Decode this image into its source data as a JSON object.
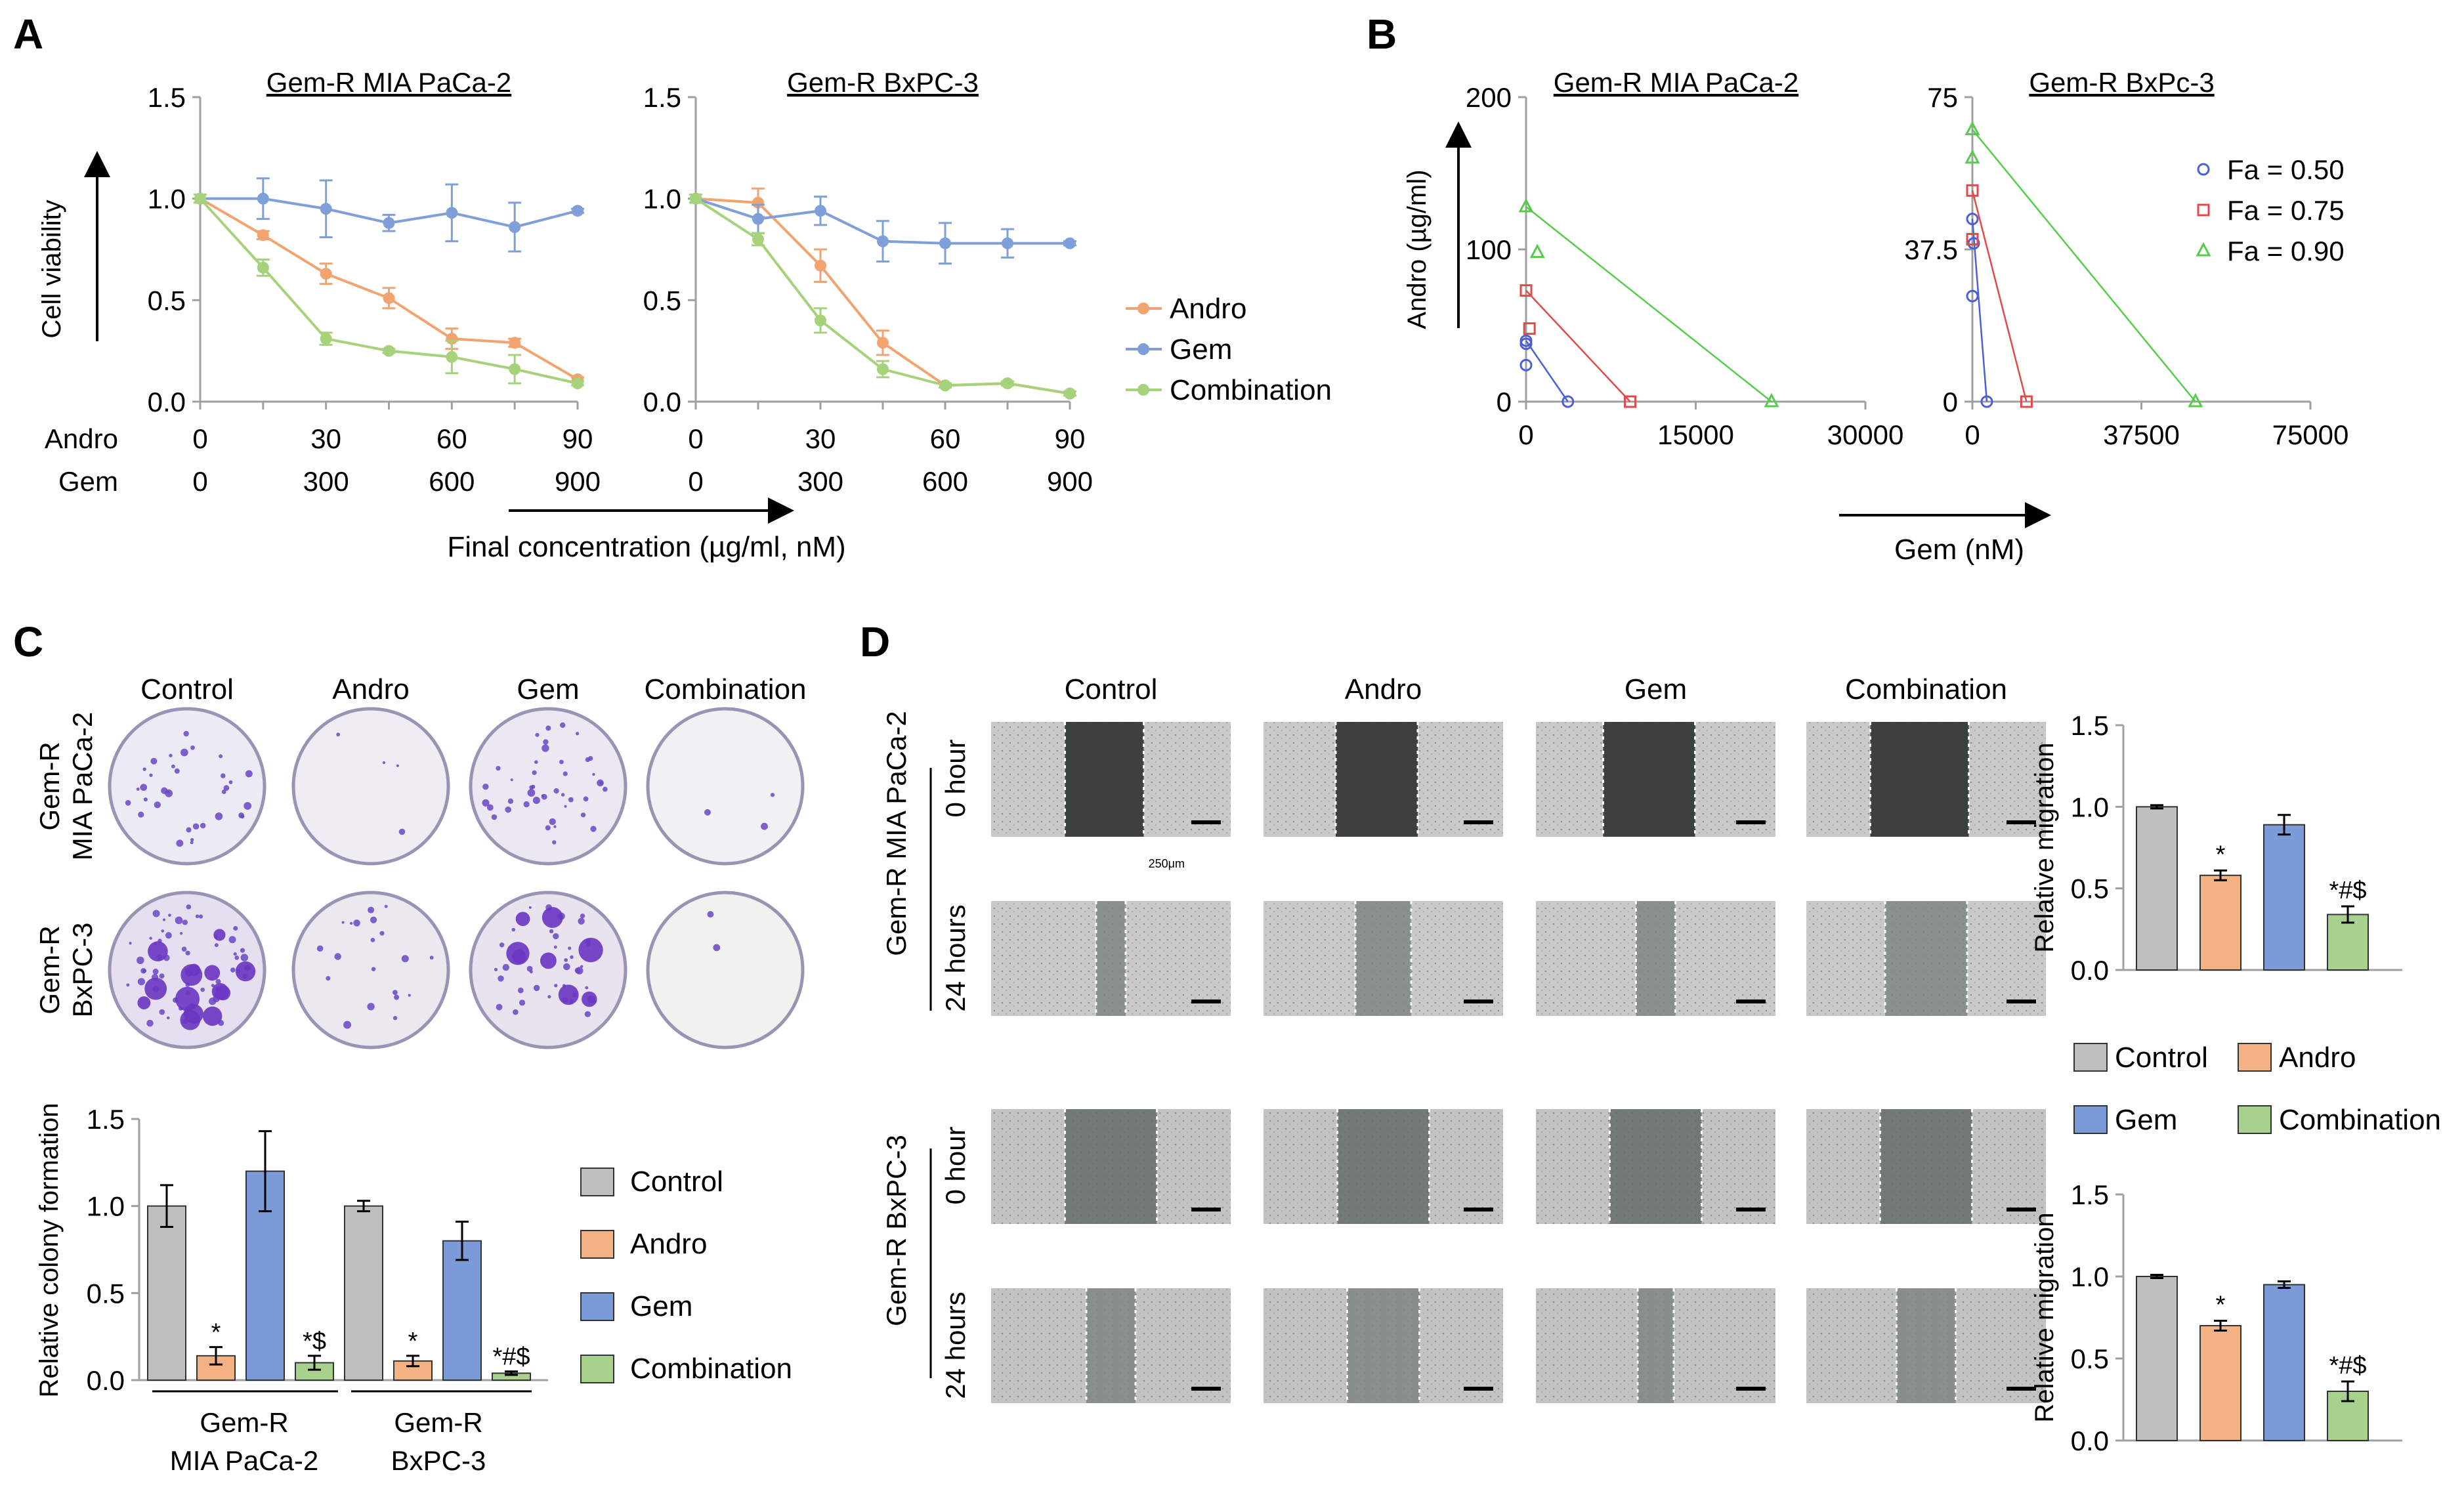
{
  "figure": {
    "panels": [
      {
        "letter": "A"
      },
      {
        "letter": "B"
      },
      {
        "letter": "C"
      },
      {
        "letter": "D"
      }
    ]
  },
  "colors": {
    "andro": "#f2a470",
    "gem": "#7f9fd8",
    "combination": "#a6d27c",
    "control": "#bdbdbd",
    "bar_andro": "#f4b183",
    "bar_gem": "#7a9bd8",
    "bar_combination": "#a9d18e",
    "bar_control": "#bfbfbf",
    "fa50": "#4b5fd6",
    "fa75": "#e04a4a",
    "fa90": "#55cc4a"
  },
  "panelA": {
    "andro_row_label": "Andro",
    "gem_row_label": "Gem",
    "andro_doses": [
      "0",
      "30",
      "60",
      "90"
    ],
    "gem_doses": [
      "0",
      "300",
      "600",
      "900"
    ],
    "xlabel": "Final concentration (µg/ml, nM)",
    "ylabel": "Cell viability",
    "legend": [
      "Andro",
      "Gem",
      "Combination"
    ],
    "yticks": [
      "0.0",
      "0.5",
      "1.0",
      "1.5"
    ]
  },
  "panelB": {
    "ylabel": "Andro (µg/ml)",
    "xlabel": "Gem (nM)",
    "legend": [
      "Fa = 0.50",
      "Fa = 0.75",
      "Fa = 0.90"
    ]
  },
  "panelC": {
    "plate_columns": [
      "Control",
      "Andro",
      "Gem",
      "Combination"
    ],
    "plate_rows": [
      [
        "Gem-R",
        "MIA PaCa-2"
      ],
      [
        "Gem-R",
        "BxPC-3"
      ]
    ],
    "ylabel": "Relative colony formation",
    "yticks": [
      "0.0",
      "0.5",
      "1.0",
      "1.5"
    ],
    "groups": [
      [
        "Gem-R",
        "MIA PaCa-2"
      ],
      [
        "Gem-R",
        "BxPC-3"
      ]
    ],
    "legend": [
      "Control",
      "Andro",
      "Gem",
      "Combination"
    ]
  },
  "panelD": {
    "columns": [
      "Control",
      "Andro",
      "Gem",
      "Combination"
    ],
    "cell_lines": [
      "Gem-R MIA PaCa-2",
      "Gem-R BxPC-3"
    ],
    "times": [
      "0 hour",
      "24 hours"
    ],
    "scale_label": "250μm",
    "ylabel": "Relative migration",
    "yticks": [
      "0.0",
      "0.5",
      "1.0",
      "1.5"
    ],
    "legend": [
      "Control",
      "Andro",
      "Gem",
      "Combination"
    ]
  },
  "chart_data": [
    {
      "id": "A1",
      "type": "line",
      "title": "Gem-R MIA PaCa-2",
      "xlabel": "Final concentration (µg/ml, nM)",
      "ylabel": "Cell viability",
      "x_andro": [
        0,
        15,
        30,
        45,
        60,
        75,
        90
      ],
      "x_gem": [
        0,
        150,
        300,
        450,
        600,
        750,
        900
      ],
      "xlim": [
        0,
        90
      ],
      "ylim": [
        0,
        1.5
      ],
      "yticks": [
        0,
        0.5,
        1.0,
        1.5
      ],
      "series": [
        {
          "name": "Andro",
          "values": [
            1.0,
            0.82,
            0.63,
            0.51,
            0.31,
            0.29,
            0.11
          ],
          "errors": [
            0.02,
            0.02,
            0.05,
            0.05,
            0.05,
            0.02,
            0.01
          ]
        },
        {
          "name": "Gem",
          "values": [
            1.0,
            1.0,
            0.95,
            0.88,
            0.93,
            0.86,
            0.94
          ],
          "errors": [
            0.02,
            0.1,
            0.14,
            0.04,
            0.14,
            0.12,
            0.01
          ]
        },
        {
          "name": "Combination",
          "values": [
            1.0,
            0.66,
            0.31,
            0.25,
            0.22,
            0.16,
            0.09
          ],
          "errors": [
            0.02,
            0.04,
            0.03,
            0.01,
            0.08,
            0.07,
            0.01
          ]
        }
      ]
    },
    {
      "id": "A2",
      "type": "line",
      "title": "Gem-R BxPC-3",
      "xlabel": "Final concentration (µg/ml, nM)",
      "ylabel": "Cell viability",
      "x_andro": [
        0,
        15,
        30,
        45,
        60,
        75,
        90
      ],
      "x_gem": [
        0,
        150,
        300,
        450,
        600,
        750,
        900
      ],
      "xlim": [
        0,
        90
      ],
      "ylim": [
        0,
        1.5
      ],
      "yticks": [
        0,
        0.5,
        1.0,
        1.5
      ],
      "series": [
        {
          "name": "Andro",
          "values": [
            1.0,
            0.98,
            0.67,
            0.29,
            0.08,
            0.09,
            0.04
          ],
          "errors": [
            0.02,
            0.07,
            0.08,
            0.06,
            0.01,
            0.01,
            0.01
          ]
        },
        {
          "name": "Gem",
          "values": [
            1.0,
            0.9,
            0.94,
            0.79,
            0.78,
            0.78,
            0.78
          ],
          "errors": [
            0.02,
            0.07,
            0.07,
            0.1,
            0.1,
            0.07,
            0.01
          ]
        },
        {
          "name": "Combination",
          "values": [
            1.0,
            0.8,
            0.4,
            0.16,
            0.08,
            0.09,
            0.04
          ],
          "errors": [
            0.02,
            0.03,
            0.06,
            0.04,
            0.01,
            0.01,
            0.01
          ]
        }
      ]
    },
    {
      "id": "B1",
      "type": "scatter",
      "title": "Gem-R MIA PaCa-2",
      "xlabel": "Gem (nM)",
      "ylabel": "Andro (µg/ml)",
      "xlim": [
        0,
        30000
      ],
      "ylim": [
        0,
        200
      ],
      "xticks": [
        "0",
        "15000",
        "30000"
      ],
      "yticks": [
        "0",
        "100",
        "200"
      ],
      "series": [
        {
          "name": "Fa = 0.50",
          "line": [
            [
              0,
              40
            ],
            [
              3700,
              0
            ]
          ],
          "points": [
            [
              0,
              24
            ],
            [
              0,
              38
            ]
          ]
        },
        {
          "name": "Fa = 0.75",
          "line": [
            [
              0,
              73
            ],
            [
              9200,
              0
            ]
          ],
          "points": [
            [
              300,
              48
            ]
          ]
        },
        {
          "name": "Fa = 0.90",
          "line": [
            [
              0,
              128
            ],
            [
              21700,
              0
            ]
          ],
          "points": [
            [
              1000,
              98
            ]
          ]
        }
      ]
    },
    {
      "id": "B2",
      "type": "scatter",
      "title": "Gem-R BxPc-3",
      "xlabel": "Gem (nM)",
      "ylabel": "Andro (µg/ml)",
      "xlim": [
        0,
        75000
      ],
      "ylim": [
        0,
        75
      ],
      "xticks": [
        "0",
        "37500",
        "75000"
      ],
      "yticks": [
        "0",
        "37.5",
        "75"
      ],
      "series": [
        {
          "name": "Fa = 0.50",
          "line": [
            [
              0,
              45
            ],
            [
              3200,
              0
            ]
          ],
          "points": [
            [
              0,
              26
            ],
            [
              300,
              39
            ]
          ]
        },
        {
          "name": "Fa = 0.75",
          "line": [
            [
              0,
              52
            ],
            [
              12000,
              0
            ]
          ],
          "points": [
            [
              0,
              40
            ]
          ]
        },
        {
          "name": "Fa = 0.90",
          "line": [
            [
              0,
              67
            ],
            [
              49500,
              0
            ]
          ],
          "points": [
            [
              0,
              60
            ]
          ]
        }
      ]
    },
    {
      "id": "C",
      "type": "bar",
      "ylabel": "Relative colony formation",
      "ylim": [
        0,
        1.5
      ],
      "yticks": [
        0,
        0.5,
        1.0,
        1.5
      ],
      "groups": [
        "Gem-R MIA PaCa-2",
        "Gem-R BxPC-3"
      ],
      "series": [
        {
          "name": "Control",
          "values": [
            1.0,
            1.0
          ],
          "errors": [
            0.12,
            0.03
          ],
          "sig": [
            "",
            ""
          ]
        },
        {
          "name": "Andro",
          "values": [
            0.14,
            0.11
          ],
          "errors": [
            0.05,
            0.03
          ],
          "sig": [
            "*",
            "*"
          ]
        },
        {
          "name": "Gem",
          "values": [
            1.2,
            0.8
          ],
          "errors": [
            0.23,
            0.11
          ],
          "sig": [
            "",
            ""
          ]
        },
        {
          "name": "Combination",
          "values": [
            0.1,
            0.04
          ],
          "errors": [
            0.04,
            0.01
          ],
          "sig": [
            "*$",
            "*#$"
          ]
        }
      ]
    },
    {
      "id": "D1",
      "type": "bar",
      "title": "Gem-R MIA PaCa-2",
      "ylabel": "Relative migration",
      "ylim": [
        0,
        1.5
      ],
      "yticks": [
        0,
        0.5,
        1.0,
        1.5
      ],
      "categories": [
        "Control",
        "Andro",
        "Gem",
        "Combination"
      ],
      "values": [
        1.0,
        0.58,
        0.89,
        0.34
      ],
      "errors": [
        0.01,
        0.03,
        0.06,
        0.05
      ],
      "sig": [
        "",
        "*",
        "",
        "*#$"
      ]
    },
    {
      "id": "D2",
      "type": "bar",
      "title": "Gem-R BxPC-3",
      "ylabel": "Relative migration",
      "ylim": [
        0,
        1.5
      ],
      "yticks": [
        0,
        0.5,
        1.0,
        1.5
      ],
      "categories": [
        "Control",
        "Andro",
        "Gem",
        "Combination"
      ],
      "values": [
        1.0,
        0.7,
        0.95,
        0.3
      ],
      "errors": [
        0.01,
        0.03,
        0.02,
        0.06
      ],
      "sig": [
        "",
        "*",
        "",
        "*#$"
      ]
    }
  ]
}
